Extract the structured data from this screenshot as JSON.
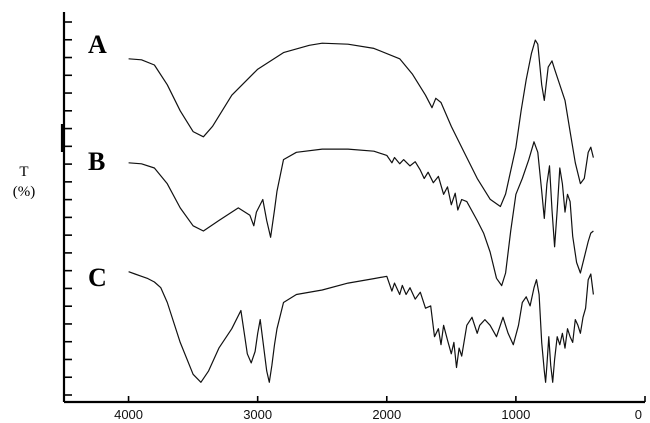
{
  "chart_data": {
    "type": "line",
    "title": "",
    "xlabel": "",
    "ylabel": "T\n(%)",
    "ylabel_lines": [
      "T",
      "(%)"
    ],
    "xlim": [
      4500,
      0
    ],
    "x_reversed": true,
    "x_ticks": [
      4000,
      3000,
      2000,
      1000,
      0
    ],
    "x_tick_labels": [
      "4000",
      "3000",
      "2000",
      "1000",
      "0"
    ],
    "y_tick_count": 22,
    "grid": false,
    "legend": "none",
    "series": [
      {
        "name": "A",
        "offset_band": [
          0,
          1
        ],
        "points": [
          [
            4000,
            0.8
          ],
          [
            3900,
            0.79
          ],
          [
            3800,
            0.74
          ],
          [
            3700,
            0.55
          ],
          [
            3600,
            0.3
          ],
          [
            3500,
            0.1
          ],
          [
            3420,
            0.05
          ],
          [
            3350,
            0.15
          ],
          [
            3200,
            0.45
          ],
          [
            3000,
            0.7
          ],
          [
            2800,
            0.86
          ],
          [
            2600,
            0.93
          ],
          [
            2500,
            0.95
          ],
          [
            2300,
            0.94
          ],
          [
            2100,
            0.9
          ],
          [
            1900,
            0.8
          ],
          [
            1800,
            0.65
          ],
          [
            1700,
            0.45
          ],
          [
            1650,
            0.33
          ],
          [
            1620,
            0.42
          ],
          [
            1580,
            0.38
          ],
          [
            1500,
            0.15
          ],
          [
            1400,
            -0.1
          ],
          [
            1300,
            -0.35
          ],
          [
            1200,
            -0.55
          ],
          [
            1120,
            -0.62
          ],
          [
            1080,
            -0.5
          ],
          [
            1000,
            -0.05
          ],
          [
            960,
            0.3
          ],
          [
            920,
            0.6
          ],
          [
            880,
            0.85
          ],
          [
            850,
            0.98
          ],
          [
            830,
            0.94
          ],
          [
            800,
            0.55
          ],
          [
            780,
            0.4
          ],
          [
            750,
            0.72
          ],
          [
            720,
            0.78
          ],
          [
            700,
            0.7
          ],
          [
            660,
            0.55
          ],
          [
            620,
            0.4
          ],
          [
            580,
            0.1
          ],
          [
            540,
            -0.2
          ],
          [
            500,
            -0.4
          ],
          [
            470,
            -0.35
          ],
          [
            440,
            -0.1
          ],
          [
            420,
            -0.05
          ],
          [
            400,
            -0.15
          ]
        ]
      },
      {
        "name": "B",
        "offset_band": [
          0,
          1
        ],
        "points": [
          [
            4000,
            0.85
          ],
          [
            3900,
            0.84
          ],
          [
            3800,
            0.8
          ],
          [
            3700,
            0.65
          ],
          [
            3600,
            0.42
          ],
          [
            3500,
            0.25
          ],
          [
            3420,
            0.2
          ],
          [
            3300,
            0.3
          ],
          [
            3150,
            0.42
          ],
          [
            3060,
            0.35
          ],
          [
            3030,
            0.25
          ],
          [
            3010,
            0.38
          ],
          [
            2960,
            0.5
          ],
          [
            2930,
            0.3
          ],
          [
            2900,
            0.14
          ],
          [
            2870,
            0.4
          ],
          [
            2850,
            0.58
          ],
          [
            2800,
            0.88
          ],
          [
            2700,
            0.95
          ],
          [
            2500,
            0.98
          ],
          [
            2300,
            0.98
          ],
          [
            2100,
            0.96
          ],
          [
            2000,
            0.92
          ],
          [
            1960,
            0.85
          ],
          [
            1940,
            0.9
          ],
          [
            1900,
            0.84
          ],
          [
            1870,
            0.88
          ],
          [
            1820,
            0.82
          ],
          [
            1780,
            0.86
          ],
          [
            1740,
            0.78
          ],
          [
            1710,
            0.7
          ],
          [
            1680,
            0.76
          ],
          [
            1640,
            0.66
          ],
          [
            1600,
            0.72
          ],
          [
            1560,
            0.55
          ],
          [
            1530,
            0.62
          ],
          [
            1500,
            0.45
          ],
          [
            1470,
            0.56
          ],
          [
            1450,
            0.4
          ],
          [
            1420,
            0.5
          ],
          [
            1380,
            0.48
          ],
          [
            1300,
            0.3
          ],
          [
            1250,
            0.18
          ],
          [
            1200,
            0.0
          ],
          [
            1150,
            -0.25
          ],
          [
            1110,
            -0.32
          ],
          [
            1080,
            -0.2
          ],
          [
            1040,
            0.2
          ],
          [
            1000,
            0.55
          ],
          [
            950,
            0.7
          ],
          [
            900,
            0.88
          ],
          [
            860,
            1.05
          ],
          [
            830,
            0.95
          ],
          [
            800,
            0.58
          ],
          [
            780,
            0.32
          ],
          [
            760,
            0.65
          ],
          [
            740,
            0.82
          ],
          [
            720,
            0.4
          ],
          [
            700,
            0.05
          ],
          [
            680,
            0.4
          ],
          [
            660,
            0.8
          ],
          [
            640,
            0.65
          ],
          [
            620,
            0.38
          ],
          [
            600,
            0.55
          ],
          [
            580,
            0.48
          ],
          [
            560,
            0.15
          ],
          [
            530,
            -0.1
          ],
          [
            500,
            -0.2
          ],
          [
            470,
            -0.05
          ],
          [
            440,
            0.1
          ],
          [
            420,
            0.18
          ],
          [
            400,
            0.2
          ]
        ]
      },
      {
        "name": "C",
        "offset_band": [
          0,
          1
        ],
        "points": [
          [
            4000,
            1.02
          ],
          [
            3950,
            1.0
          ],
          [
            3900,
            0.98
          ],
          [
            3850,
            0.96
          ],
          [
            3800,
            0.93
          ],
          [
            3750,
            0.88
          ],
          [
            3700,
            0.75
          ],
          [
            3600,
            0.4
          ],
          [
            3500,
            0.12
          ],
          [
            3440,
            0.05
          ],
          [
            3380,
            0.15
          ],
          [
            3300,
            0.35
          ],
          [
            3200,
            0.52
          ],
          [
            3130,
            0.68
          ],
          [
            3100,
            0.45
          ],
          [
            3080,
            0.3
          ],
          [
            3050,
            0.22
          ],
          [
            3020,
            0.32
          ],
          [
            3000,
            0.48
          ],
          [
            2980,
            0.6
          ],
          [
            2960,
            0.42
          ],
          [
            2930,
            0.15
          ],
          [
            2910,
            0.05
          ],
          [
            2890,
            0.2
          ],
          [
            2870,
            0.38
          ],
          [
            2850,
            0.52
          ],
          [
            2800,
            0.75
          ],
          [
            2700,
            0.82
          ],
          [
            2500,
            0.86
          ],
          [
            2300,
            0.92
          ],
          [
            2100,
            0.96
          ],
          [
            2000,
            0.98
          ],
          [
            1960,
            0.85
          ],
          [
            1940,
            0.92
          ],
          [
            1900,
            0.82
          ],
          [
            1880,
            0.9
          ],
          [
            1850,
            0.82
          ],
          [
            1820,
            0.88
          ],
          [
            1780,
            0.78
          ],
          [
            1740,
            0.84
          ],
          [
            1700,
            0.7
          ],
          [
            1660,
            0.72
          ],
          [
            1630,
            0.45
          ],
          [
            1600,
            0.52
          ],
          [
            1580,
            0.38
          ],
          [
            1560,
            0.55
          ],
          [
            1530,
            0.42
          ],
          [
            1500,
            0.3
          ],
          [
            1480,
            0.4
          ],
          [
            1460,
            0.18
          ],
          [
            1440,
            0.35
          ],
          [
            1420,
            0.28
          ],
          [
            1380,
            0.55
          ],
          [
            1340,
            0.62
          ],
          [
            1300,
            0.48
          ],
          [
            1280,
            0.55
          ],
          [
            1240,
            0.6
          ],
          [
            1200,
            0.55
          ],
          [
            1150,
            0.45
          ],
          [
            1100,
            0.62
          ],
          [
            1060,
            0.48
          ],
          [
            1020,
            0.38
          ],
          [
            980,
            0.55
          ],
          [
            950,
            0.75
          ],
          [
            920,
            0.8
          ],
          [
            890,
            0.72
          ],
          [
            860,
            0.88
          ],
          [
            840,
            0.95
          ],
          [
            820,
            0.82
          ],
          [
            800,
            0.4
          ],
          [
            780,
            0.15
          ],
          [
            770,
            0.05
          ],
          [
            760,
            0.2
          ],
          [
            745,
            0.45
          ],
          [
            730,
            0.2
          ],
          [
            715,
            0.05
          ],
          [
            700,
            0.25
          ],
          [
            680,
            0.45
          ],
          [
            660,
            0.38
          ],
          [
            640,
            0.48
          ],
          [
            620,
            0.35
          ],
          [
            600,
            0.52
          ],
          [
            580,
            0.45
          ],
          [
            560,
            0.4
          ],
          [
            540,
            0.6
          ],
          [
            520,
            0.55
          ],
          [
            500,
            0.48
          ],
          [
            480,
            0.62
          ],
          [
            460,
            0.7
          ],
          [
            440,
            0.95
          ],
          [
            420,
            1.0
          ],
          [
            400,
            0.82
          ]
        ]
      }
    ]
  }
}
